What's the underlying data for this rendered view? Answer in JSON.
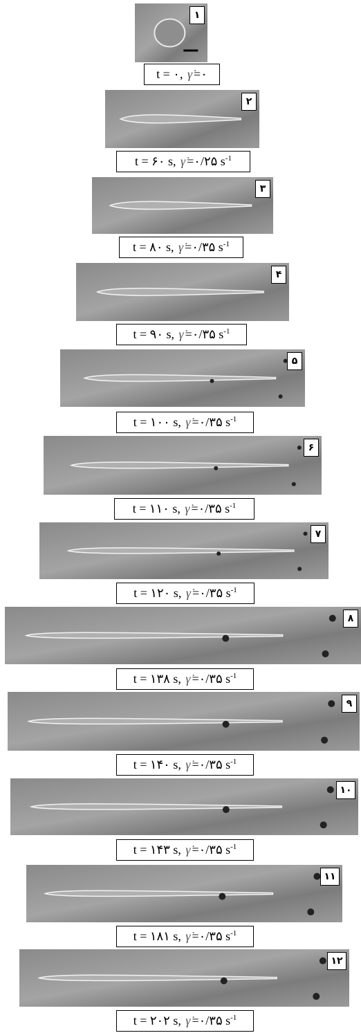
{
  "panels": [
    {
      "label": "۱",
      "caption": {
        "time": "t = ۰,",
        "symbol": "γ̇",
        "rate": "=۰"
      }
    },
    {
      "label": "۲",
      "caption": {
        "time": "t = ۶۰ s,",
        "symbol": "γ̇",
        "rate": "=۰/۲۵ s",
        "exponent": "-1"
      }
    },
    {
      "label": "۳",
      "caption": {
        "time": "t = ۸۰ s,",
        "symbol": "γ̇",
        "rate": "=۰/۳۵ s",
        "exponent": "-1"
      }
    },
    {
      "label": "۴",
      "caption": {
        "time": "t = ۹۰ s,",
        "symbol": "γ̇",
        "rate": "=۰/۳۵ s",
        "exponent": "-1"
      }
    },
    {
      "label": "۵",
      "caption": {
        "time": "t = ۱۰۰ s,",
        "symbol": "γ̇",
        "rate": "=۰/۳۵ s",
        "exponent": "-1"
      }
    },
    {
      "label": "۶",
      "caption": {
        "time": "t = ۱۱۰ s,",
        "symbol": "γ̇",
        "rate": "=۰/۳۵ s",
        "exponent": "-1"
      }
    },
    {
      "label": "۷",
      "caption": {
        "time": "t = ۱۲۰ s,",
        "symbol": "γ̇",
        "rate": "=۰/۳۵ s",
        "exponent": "-1"
      }
    },
    {
      "label": "۸",
      "caption": {
        "time": "t = ۱۳۸ s,",
        "symbol": "γ̇",
        "rate": "=۰/۳۵ s",
        "exponent": "-1"
      }
    },
    {
      "label": "۹",
      "caption": {
        "time": "t = ۱۴۰ s,",
        "symbol": "γ̇",
        "rate": "=۰/۳۵ s",
        "exponent": "-1"
      }
    },
    {
      "label": "۱۰",
      "caption": {
        "time": "t = ۱۴۳ s,",
        "symbol": "γ̇",
        "rate": "=۰/۳۵ s",
        "exponent": "-1"
      }
    },
    {
      "label": "۱۱",
      "caption": {
        "time": "t = ۱۸۱ s,",
        "symbol": "γ̇",
        "rate": "=۰/۳۵ s",
        "exponent": "-1"
      }
    },
    {
      "label": "۱۲",
      "caption": {
        "time": "t = ۲۰۲ s,",
        "symbol": "γ̇",
        "rate": "=۰/۳۵ s",
        "exponent": "-1"
      }
    }
  ]
}
